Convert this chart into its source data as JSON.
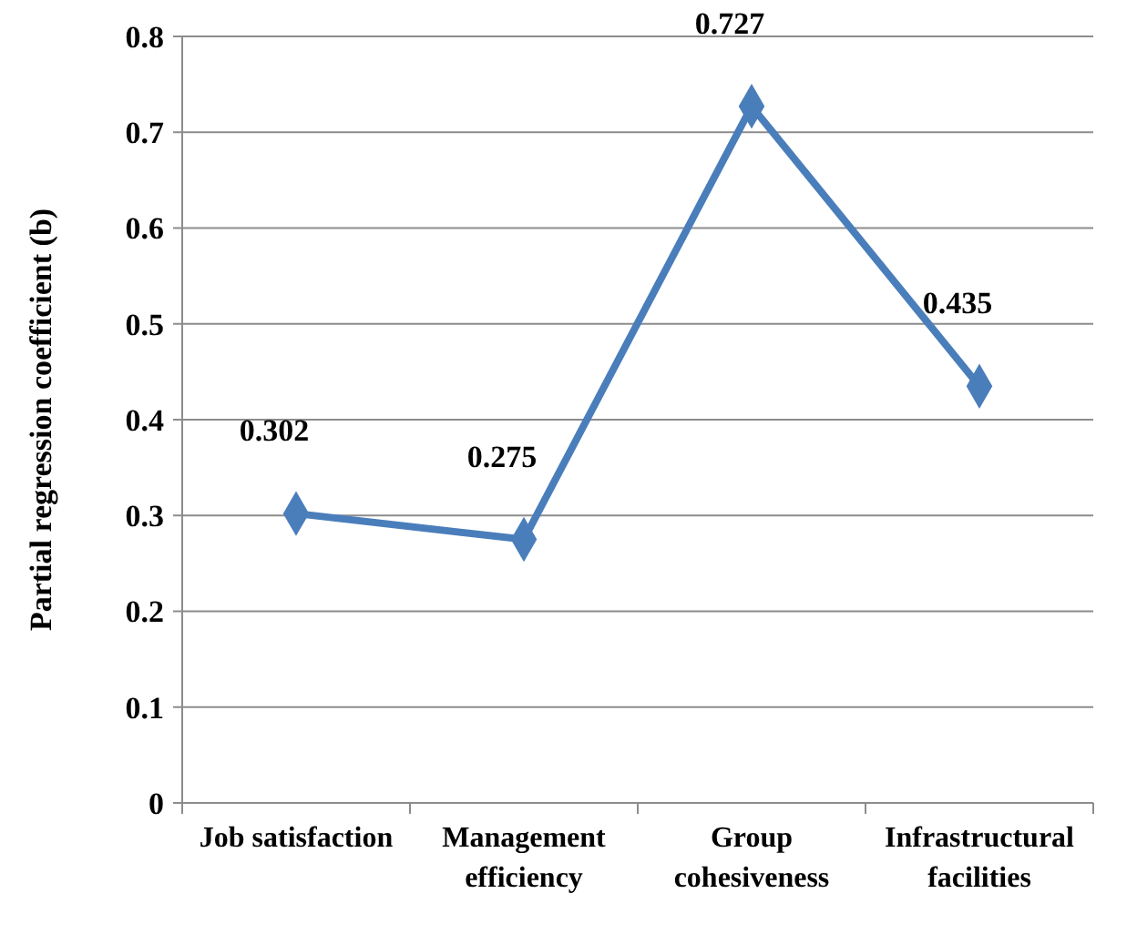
{
  "chart_data": {
    "type": "line",
    "ylabel": "Partial regression coefficient (b)",
    "categories": [
      "Job satisfaction",
      "Management efficiency",
      "Group cohesiveness",
      "Infrastructural facilities"
    ],
    "series": [
      {
        "color": "#4a7ebb",
        "values": [
          0.302,
          0.275,
          0.727,
          0.435
        ]
      }
    ],
    "ylim": [
      0,
      0.8
    ],
    "yticks": [
      0,
      0.1,
      0.2,
      0.3,
      0.4,
      0.5,
      0.6,
      0.7,
      0.8
    ],
    "grid": "y",
    "marker": "diamond",
    "line_style": "solid",
    "data_labels": true
  }
}
